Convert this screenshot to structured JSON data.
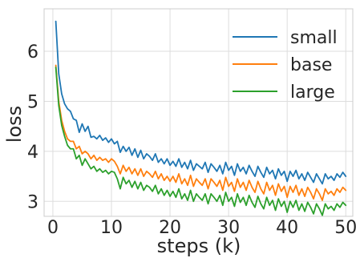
{
  "chart_data": {
    "type": "line",
    "title": "",
    "xlabel": "steps (k)",
    "ylabel": "loss",
    "xlim": [
      -1.5,
      51.2
    ],
    "ylim": [
      2.7,
      6.85
    ],
    "xticks": [
      0,
      10,
      20,
      30,
      40,
      50
    ],
    "xtick_labels": [
      "0",
      "10",
      "20",
      "30",
      "40",
      "50"
    ],
    "yticks": [
      3,
      4,
      5,
      6
    ],
    "ytick_labels": [
      "3",
      "4",
      "5",
      "6"
    ],
    "grid": true,
    "legend_position": "top-right",
    "x": [
      0.5,
      1.0,
      1.5,
      2.0,
      2.5,
      3.0,
      3.5,
      4.0,
      4.5,
      5.0,
      5.5,
      6.0,
      6.5,
      7.0,
      7.5,
      8.0,
      8.5,
      9.0,
      9.5,
      10.0,
      10.5,
      11.0,
      11.5,
      12.0,
      12.5,
      13.0,
      13.5,
      14.0,
      14.5,
      15.0,
      15.5,
      16.0,
      16.5,
      17.0,
      17.5,
      18.0,
      18.5,
      19.0,
      19.5,
      20.0,
      20.5,
      21.0,
      21.5,
      22.0,
      22.5,
      23.0,
      23.5,
      24.0,
      24.5,
      25.0,
      25.5,
      26.0,
      26.5,
      27.0,
      27.5,
      28.0,
      28.5,
      29.0,
      29.5,
      30.0,
      30.5,
      31.0,
      31.5,
      32.0,
      32.5,
      33.0,
      33.5,
      34.0,
      34.5,
      35.0,
      35.5,
      36.0,
      36.5,
      37.0,
      37.5,
      38.0,
      38.5,
      39.0,
      39.5,
      40.0,
      40.5,
      41.0,
      41.5,
      42.0,
      42.5,
      43.0,
      43.5,
      44.0,
      44.5,
      45.0,
      45.5,
      46.0,
      46.5,
      47.0,
      47.5,
      48.0,
      48.5,
      49.0,
      49.5,
      50.0
    ],
    "series": [
      {
        "name": "small",
        "color": "#1f77b4",
        "values": [
          6.6,
          5.55,
          5.15,
          4.95,
          4.85,
          4.8,
          4.65,
          4.62,
          4.38,
          4.55,
          4.4,
          4.5,
          4.28,
          4.3,
          4.25,
          4.32,
          4.22,
          4.27,
          4.18,
          4.25,
          4.15,
          4.2,
          3.98,
          4.1,
          4.0,
          4.08,
          3.92,
          4.05,
          3.88,
          4.02,
          3.85,
          3.95,
          3.9,
          3.82,
          3.95,
          3.78,
          3.85,
          3.75,
          3.85,
          3.72,
          3.8,
          3.7,
          3.85,
          3.68,
          3.78,
          3.65,
          3.82,
          3.62,
          3.75,
          3.7,
          3.65,
          3.78,
          3.58,
          3.75,
          3.68,
          3.6,
          3.72,
          3.55,
          3.78,
          3.62,
          3.7,
          3.52,
          3.75,
          3.6,
          3.68,
          3.55,
          3.72,
          3.6,
          3.5,
          3.7,
          3.58,
          3.48,
          3.68,
          3.55,
          3.62,
          3.45,
          3.65,
          3.52,
          3.6,
          3.4,
          3.6,
          3.5,
          3.62,
          3.45,
          3.55,
          3.42,
          3.58,
          3.48,
          3.38,
          3.55,
          3.45,
          3.35,
          3.55,
          3.45,
          3.5,
          3.42,
          3.55,
          3.48,
          3.58,
          3.5
        ]
      },
      {
        "name": "base",
        "color": "#ff7f0e",
        "values": [
          5.72,
          5.0,
          4.62,
          4.4,
          4.25,
          4.2,
          4.2,
          4.05,
          4.1,
          3.95,
          4.0,
          3.95,
          3.85,
          3.92,
          3.82,
          3.88,
          3.82,
          3.85,
          3.78,
          3.85,
          3.8,
          3.7,
          3.55,
          3.72,
          3.6,
          3.68,
          3.55,
          3.65,
          3.52,
          3.65,
          3.5,
          3.6,
          3.55,
          3.48,
          3.6,
          3.45,
          3.55,
          3.42,
          3.5,
          3.4,
          3.5,
          3.38,
          3.55,
          3.35,
          3.45,
          3.32,
          3.52,
          3.3,
          3.45,
          3.38,
          3.32,
          3.45,
          3.25,
          3.45,
          3.38,
          3.3,
          3.42,
          3.22,
          3.48,
          3.3,
          3.38,
          3.2,
          3.45,
          3.28,
          3.38,
          3.22,
          3.42,
          3.28,
          3.18,
          3.4,
          3.25,
          3.15,
          3.38,
          3.22,
          3.32,
          3.12,
          3.35,
          3.2,
          3.3,
          3.08,
          3.3,
          3.18,
          3.32,
          3.12,
          3.25,
          3.1,
          3.28,
          3.18,
          3.05,
          3.25,
          3.15,
          3.02,
          3.25,
          3.15,
          3.2,
          3.12,
          3.25,
          3.18,
          3.28,
          3.22
        ]
      },
      {
        "name": "large",
        "color": "#2ca02c",
        "values": [
          5.68,
          4.92,
          4.52,
          4.3,
          4.12,
          4.05,
          4.05,
          3.85,
          3.92,
          3.72,
          3.85,
          3.75,
          3.65,
          3.7,
          3.6,
          3.65,
          3.58,
          3.62,
          3.55,
          3.6,
          3.58,
          3.45,
          3.25,
          3.48,
          3.35,
          3.42,
          3.28,
          3.4,
          3.25,
          3.38,
          3.22,
          3.32,
          3.28,
          3.2,
          3.32,
          3.15,
          3.25,
          3.12,
          3.22,
          3.1,
          3.2,
          3.08,
          3.25,
          3.05,
          3.15,
          3.02,
          3.22,
          3.0,
          3.15,
          3.08,
          3.02,
          3.15,
          2.95,
          3.15,
          3.08,
          3.0,
          3.12,
          2.92,
          3.18,
          3.0,
          3.08,
          2.9,
          3.15,
          2.98,
          3.08,
          2.92,
          3.12,
          2.98,
          2.88,
          3.1,
          2.95,
          2.85,
          3.08,
          2.92,
          3.02,
          2.82,
          3.05,
          2.9,
          3.0,
          2.78,
          3.0,
          2.88,
          3.02,
          2.82,
          2.95,
          2.8,
          2.98,
          2.88,
          2.75,
          2.95,
          2.85,
          2.72,
          2.95,
          2.85,
          2.9,
          2.82,
          2.95,
          2.88,
          2.98,
          2.92
        ]
      }
    ]
  }
}
